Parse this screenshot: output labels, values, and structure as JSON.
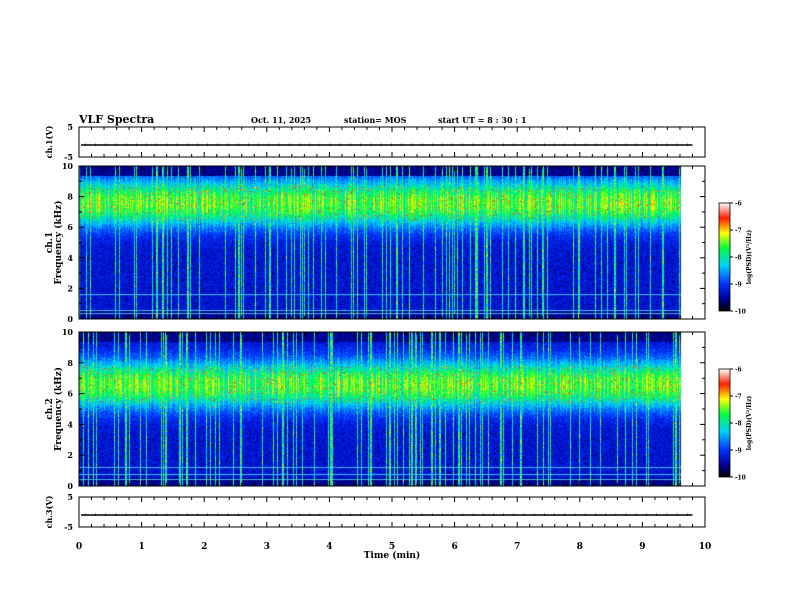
{
  "header": {
    "title": "VLF Spectra",
    "date": "Oct. 11, 2025",
    "station": "station= MOS",
    "start": "start  UT =   8  : 30 : 1"
  },
  "chart_data": [
    {
      "type": "line",
      "name": "ch1_voltage",
      "ylabel": "ch.1(V)",
      "ylim": [
        -5,
        5
      ],
      "yticks": [
        "5",
        "-5"
      ],
      "xlim": [
        0,
        10
      ],
      "values_approx_constant": -1.0
    },
    {
      "type": "heatmap",
      "name": "ch1_spectrogram",
      "ylabel_lines": [
        "ch.1",
        "Frequency (kHz)"
      ],
      "xlim": [
        0,
        10
      ],
      "ylim": [
        0,
        10
      ],
      "yticks": [
        "0",
        "2",
        "4",
        "6",
        "8",
        "10"
      ],
      "data_end_min": 9.8,
      "dominant_band_khz": [
        6.0,
        9.2
      ],
      "colorbar": {
        "label": "log(PSD)(V²/Hz)",
        "range": [
          -10,
          -6
        ],
        "ticks": [
          "-6",
          "-7",
          "-8",
          "-9",
          "-10"
        ]
      }
    },
    {
      "type": "heatmap",
      "name": "ch2_spectrogram",
      "ylabel_lines": [
        "ch.2",
        "Frequency (kHz)"
      ],
      "xlim": [
        0,
        10
      ],
      "ylim": [
        0,
        10
      ],
      "yticks": [
        "0",
        "2",
        "4",
        "6",
        "8",
        "10"
      ],
      "data_end_min": 9.8,
      "dominant_band_khz": [
        5.0,
        8.2
      ],
      "colorbar": {
        "label": "log(PSD)(V²/Hz)",
        "range": [
          -10,
          -6
        ],
        "ticks": [
          "-6",
          "-7",
          "-8",
          "-9",
          "-10"
        ]
      }
    },
    {
      "type": "line",
      "name": "ch3_voltage",
      "ylabel": "ch.3(V)",
      "ylim": [
        -5,
        5
      ],
      "yticks": [
        "5",
        "-5"
      ],
      "xlim": [
        0,
        10
      ],
      "values_approx_constant": -1.0
    }
  ],
  "xaxis": {
    "label": "Time  (min)",
    "ticks": [
      "0",
      "1",
      "2",
      "3",
      "4",
      "5",
      "6",
      "7",
      "8",
      "9",
      "10"
    ]
  }
}
